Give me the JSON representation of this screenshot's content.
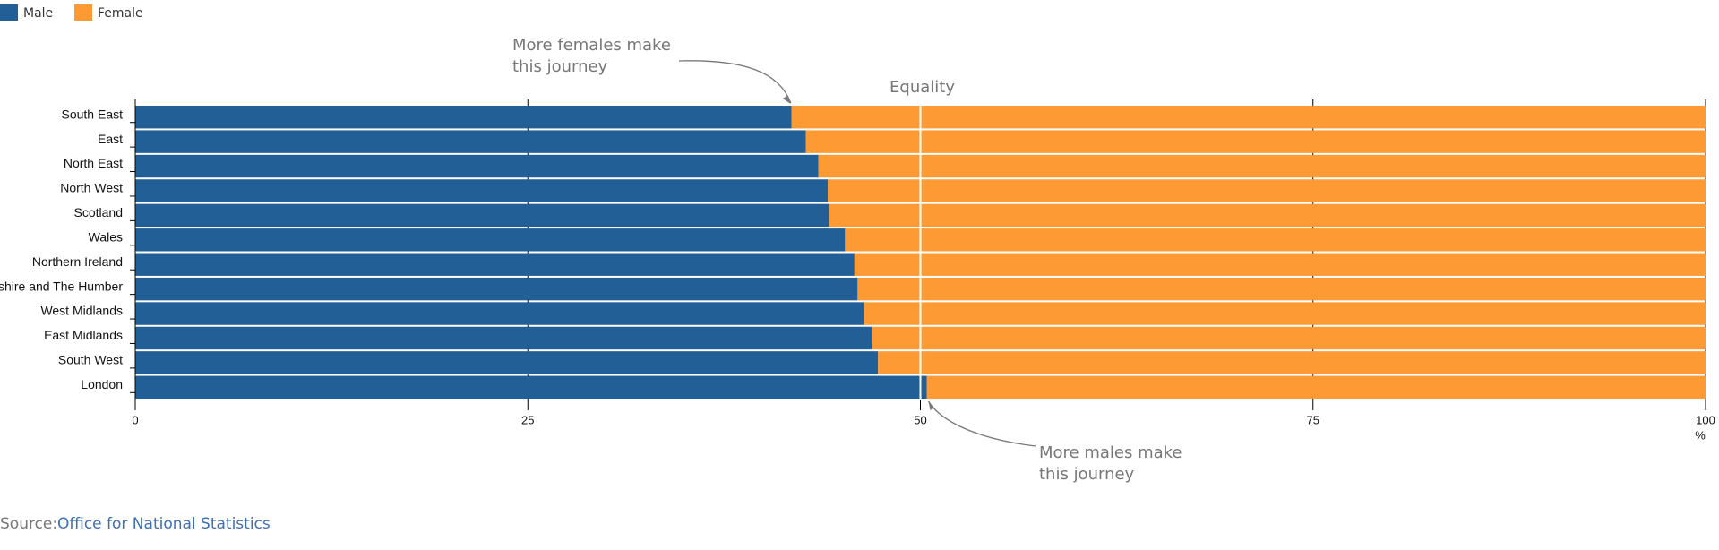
{
  "chart_data": {
    "type": "stacked-bar",
    "orientation": "horizontal",
    "categories": [
      "South East",
      "East",
      "North East",
      "North West",
      "Scotland",
      "Wales",
      "Northern Ireland",
      "Yorkshire and The Humber",
      "West Midlands",
      "East Midlands",
      "South West",
      "London"
    ],
    "series": [
      {
        "name": "Male",
        "color": "#225f97",
        "values": [
          41.8,
          42.7,
          43.5,
          44.1,
          44.2,
          45.2,
          45.8,
          46.0,
          46.4,
          46.9,
          47.3,
          50.4
        ]
      },
      {
        "name": "Female",
        "color": "#fd9a33",
        "values": [
          58.2,
          57.3,
          56.5,
          55.9,
          55.8,
          54.8,
          54.2,
          54.0,
          53.6,
          53.1,
          52.7,
          49.6
        ]
      }
    ],
    "xlim": [
      0,
      100
    ],
    "xticks": [
      0,
      25,
      50,
      75,
      100
    ],
    "x_unit": "%",
    "reference_line": {
      "value": 50,
      "label": "Equality"
    },
    "annotations": [
      {
        "lines": [
          "More females make",
          "this journey"
        ]
      },
      {
        "lines": [
          "More males make",
          "this journey"
        ]
      }
    ],
    "source": {
      "label": "Source:",
      "link": "Office for National Statistics"
    }
  }
}
